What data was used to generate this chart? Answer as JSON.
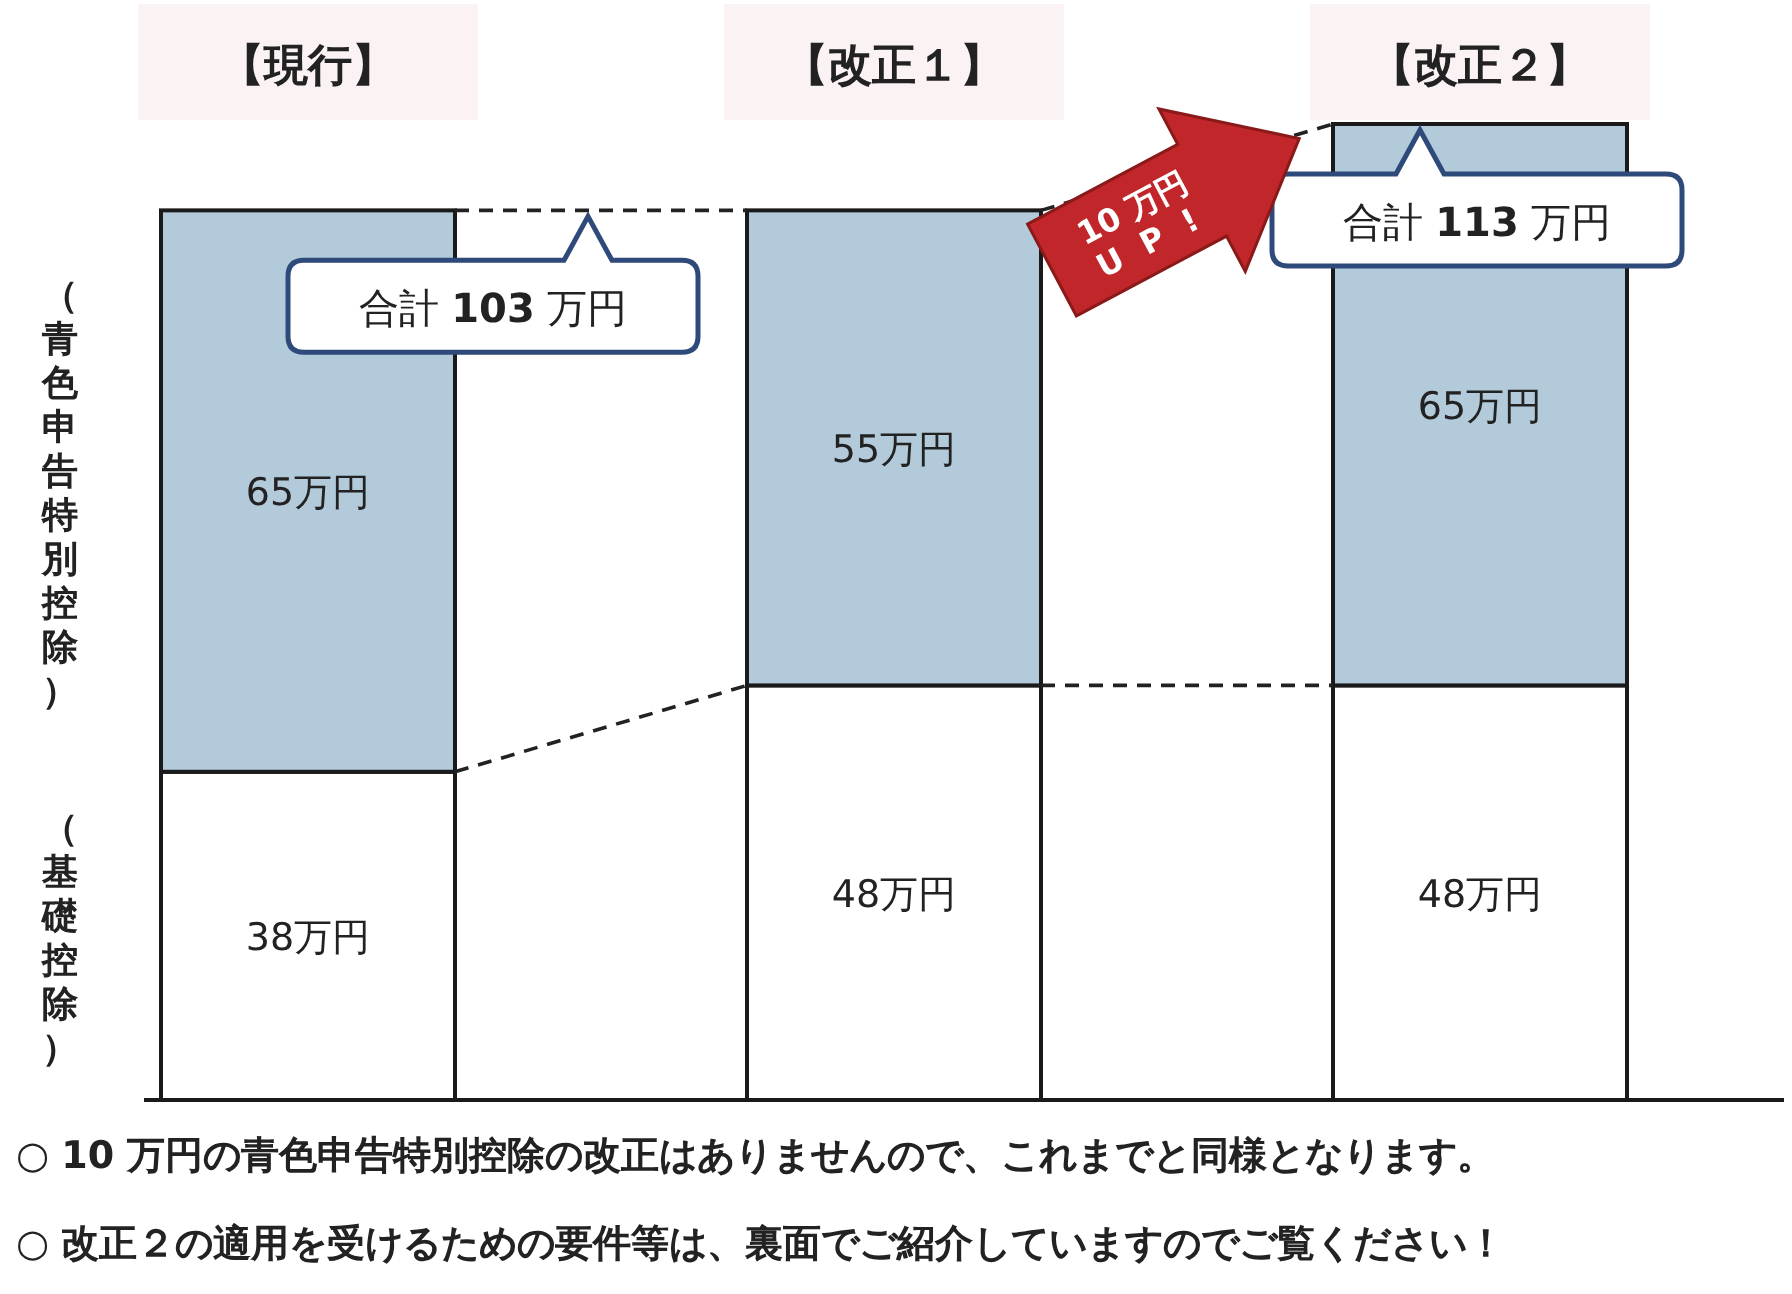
{
  "chart_data": {
    "type": "bar",
    "stacked": true,
    "categories": [
      "【現行】",
      "【改正１】",
      "【改正２】"
    ],
    "series": [
      {
        "name": "（基礎控除）",
        "color": "#ffffff",
        "values": [
          38,
          48,
          48
        ],
        "value_labels": [
          "38万円",
          "48万円",
          "48万円"
        ]
      },
      {
        "name": "（青色申告特別控除）",
        "color": "#b3cadb",
        "values": [
          65,
          55,
          65
        ],
        "value_labels": [
          "65万円",
          "55万円",
          "65万円"
        ]
      }
    ],
    "annotations": [
      {
        "text": "合計 **103** 万円",
        "x": "【現行】",
        "y": 103
      },
      {
        "text": "合計 **113** 万円",
        "x": "【改正２】",
        "y": 113
      },
      "10 万円 U P !",
      "○ **10 万円の青色申告特別控除の改正はありませんので、これまでと同様となります。**",
      "○ **改正２の適用を受けるための要件等は、裏面でご紹介していますのでご覧ください！**"
    ]
  }
}
